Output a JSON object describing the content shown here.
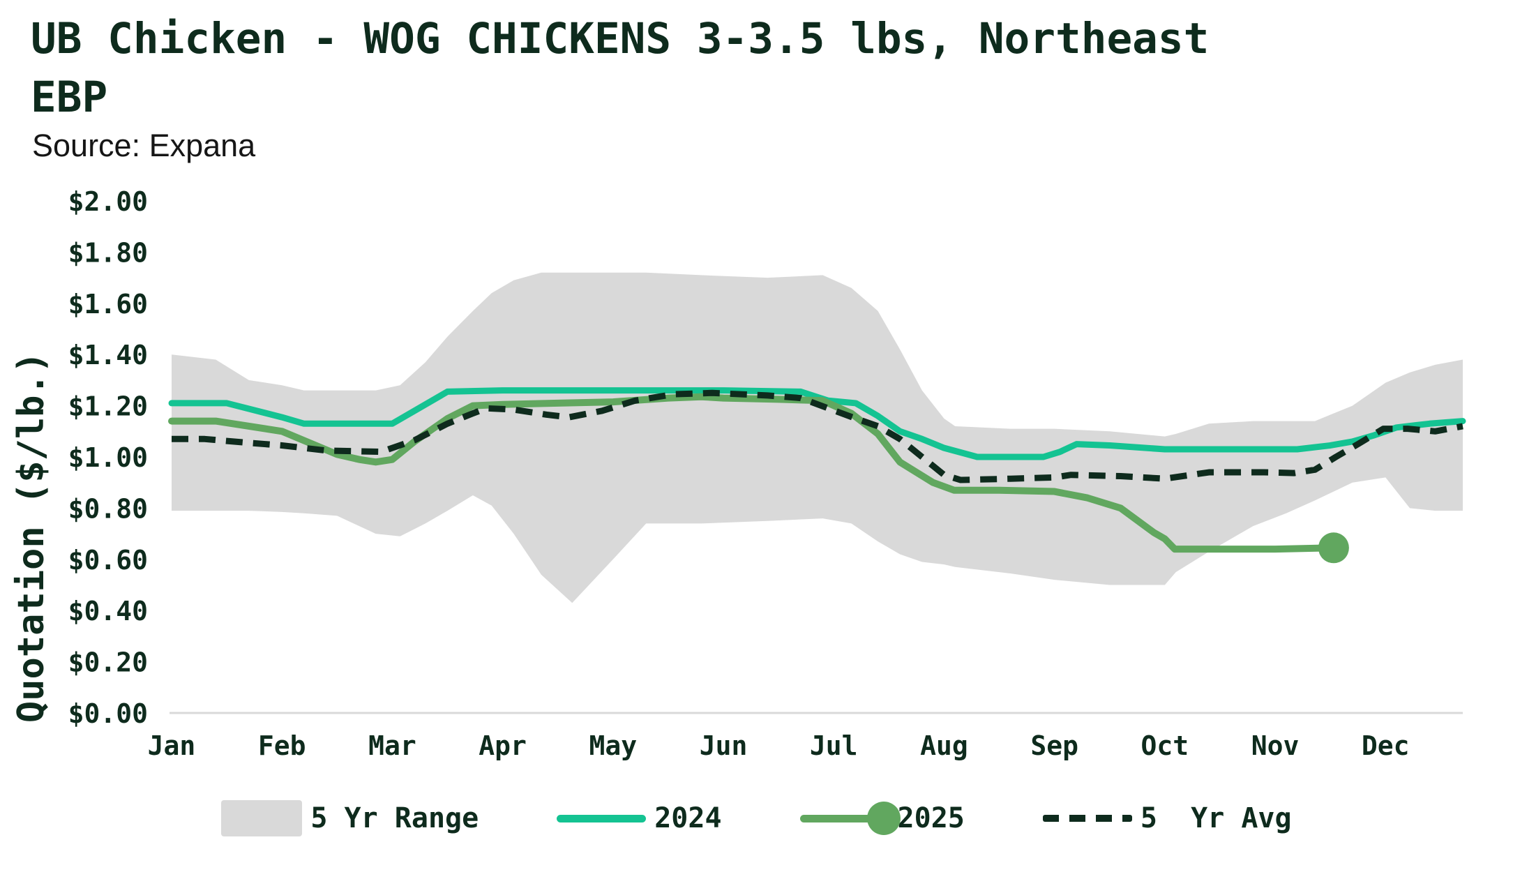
{
  "header": {
    "title": "UB Chicken - WOG CHICKENS 3-3.5 lbs, Northeast EBP",
    "source": "Source: Expana"
  },
  "colors": {
    "dark": "#0e2b1d",
    "teal_2024": "#14c392",
    "green_2025": "#61a75f",
    "band_gray": "#d9d9d9",
    "axis_line": "#d9d9d9",
    "source_text": "#161616",
    "background": "#ffffff"
  },
  "legend": {
    "items": [
      {
        "id": "range",
        "label": "5 Yr Range"
      },
      {
        "id": "y2024",
        "label": "2024"
      },
      {
        "id": "y2025",
        "label": "2025"
      },
      {
        "id": "avg",
        "label": "5  Yr Avg"
      }
    ]
  },
  "chart_data": {
    "type": "line",
    "title": "UB Chicken - WOG CHICKENS 3-3.5 lbs, Northeast EBP",
    "subtitle": "Source: Expana",
    "xlabel": "",
    "ylabel": "Quotation ($/lb.)",
    "x_categories": [
      "Jan",
      "Feb",
      "Mar",
      "Apr",
      "May",
      "Jun",
      "Jul",
      "Aug",
      "Sep",
      "Oct",
      "Nov",
      "Dec"
    ],
    "xlim": [
      0,
      11.7
    ],
    "ylim": [
      0,
      2.0
    ],
    "grid": false,
    "legend_position": "bottom",
    "y_ticks": [
      {
        "value": 2.0,
        "label": "$2.00"
      },
      {
        "value": 1.8,
        "label": "$1.80"
      },
      {
        "value": 1.6,
        "label": "$1.60"
      },
      {
        "value": 1.4,
        "label": "$1.40"
      },
      {
        "value": 1.2,
        "label": "$1.20"
      },
      {
        "value": 1.0,
        "label": "$1.00"
      },
      {
        "value": 0.8,
        "label": "$0.80"
      },
      {
        "value": 0.6,
        "label": "$0.60"
      },
      {
        "value": 0.4,
        "label": "$0.40"
      },
      {
        "value": 0.2,
        "label": "$0.20"
      },
      {
        "value": 0.0,
        "label": "$0.00"
      }
    ],
    "band": {
      "name": "5 Yr Range",
      "color": "#d9d9d9",
      "x": [
        0.0,
        0.4,
        0.7,
        1.0,
        1.2,
        1.5,
        1.85,
        2.07,
        2.3,
        2.5,
        2.73,
        2.9,
        3.1,
        3.35,
        3.63,
        4.0,
        4.3,
        4.8,
        5.4,
        5.9,
        6.16,
        6.4,
        6.6,
        6.8,
        7.0,
        7.1,
        7.6,
        8.0,
        8.5,
        9.0,
        9.1,
        9.4,
        9.8,
        10.1,
        10.36,
        10.7,
        11.0,
        11.22,
        11.45,
        11.7
      ],
      "top": [
        1.4,
        1.38,
        1.3,
        1.28,
        1.26,
        1.26,
        1.26,
        1.28,
        1.37,
        1.47,
        1.57,
        1.64,
        1.69,
        1.72,
        1.72,
        1.72,
        1.72,
        1.71,
        1.7,
        1.71,
        1.66,
        1.57,
        1.42,
        1.26,
        1.15,
        1.12,
        1.11,
        1.11,
        1.1,
        1.08,
        1.09,
        1.13,
        1.14,
        1.14,
        1.14,
        1.2,
        1.29,
        1.33,
        1.36,
        1.38
      ],
      "bottom": [
        0.79,
        0.79,
        0.79,
        0.785,
        0.78,
        0.77,
        0.7,
        0.69,
        0.74,
        0.79,
        0.85,
        0.81,
        0.7,
        0.54,
        0.43,
        0.6,
        0.74,
        0.74,
        0.75,
        0.76,
        0.74,
        0.67,
        0.62,
        0.59,
        0.58,
        0.57,
        0.545,
        0.52,
        0.5,
        0.5,
        0.55,
        0.63,
        0.73,
        0.78,
        0.83,
        0.9,
        0.92,
        0.8,
        0.79,
        0.79
      ]
    },
    "series": [
      {
        "name": "2024",
        "color": "#14c392",
        "style": "solid",
        "width": 9,
        "end_dot": false,
        "points": [
          [
            0,
            1.21
          ],
          [
            0.5,
            1.21
          ],
          [
            1.0,
            1.155
          ],
          [
            1.2,
            1.13
          ],
          [
            2.0,
            1.13
          ],
          [
            2.2,
            1.18
          ],
          [
            2.5,
            1.255
          ],
          [
            3.0,
            1.26
          ],
          [
            4.0,
            1.26
          ],
          [
            5.0,
            1.26
          ],
          [
            5.7,
            1.255
          ],
          [
            5.95,
            1.22
          ],
          [
            6.2,
            1.21
          ],
          [
            6.4,
            1.16
          ],
          [
            6.6,
            1.1
          ],
          [
            6.8,
            1.07
          ],
          [
            7.0,
            1.035
          ],
          [
            7.3,
            1.0
          ],
          [
            7.9,
            1.0
          ],
          [
            8.05,
            1.02
          ],
          [
            8.2,
            1.05
          ],
          [
            8.5,
            1.045
          ],
          [
            9.0,
            1.03
          ],
          [
            9.5,
            1.03
          ],
          [
            10.2,
            1.03
          ],
          [
            10.5,
            1.045
          ],
          [
            10.7,
            1.06
          ],
          [
            10.9,
            1.085
          ],
          [
            11.1,
            1.115
          ],
          [
            11.4,
            1.13
          ],
          [
            11.7,
            1.14
          ]
        ]
      },
      {
        "name": "2025",
        "color": "#61a75f",
        "style": "solid",
        "width": 10,
        "end_dot": true,
        "points": [
          [
            0,
            1.14
          ],
          [
            0.4,
            1.14
          ],
          [
            1.0,
            1.1
          ],
          [
            1.5,
            1.01
          ],
          [
            1.7,
            0.99
          ],
          [
            1.85,
            0.98
          ],
          [
            2.0,
            0.99
          ],
          [
            2.2,
            1.06
          ],
          [
            2.5,
            1.15
          ],
          [
            2.73,
            1.2
          ],
          [
            3.0,
            1.205
          ],
          [
            3.5,
            1.21
          ],
          [
            4.0,
            1.215
          ],
          [
            4.5,
            1.23
          ],
          [
            4.8,
            1.235
          ],
          [
            5.0,
            1.23
          ],
          [
            5.5,
            1.225
          ],
          [
            5.9,
            1.22
          ],
          [
            6.16,
            1.17
          ],
          [
            6.4,
            1.09
          ],
          [
            6.6,
            0.98
          ],
          [
            6.9,
            0.9
          ],
          [
            7.09,
            0.87
          ],
          [
            7.5,
            0.87
          ],
          [
            8.0,
            0.865
          ],
          [
            8.3,
            0.84
          ],
          [
            8.6,
            0.8
          ],
          [
            8.9,
            0.705
          ],
          [
            9.0,
            0.68
          ],
          [
            9.09,
            0.64
          ],
          [
            9.5,
            0.64
          ],
          [
            10.0,
            0.64
          ],
          [
            10.53,
            0.645
          ]
        ]
      },
      {
        "name": "5 Yr Avg",
        "color": "#0e2b1d",
        "style": "dashed",
        "width": 9,
        "end_dot": false,
        "points": [
          [
            0,
            1.07
          ],
          [
            0.3,
            1.07
          ],
          [
            0.7,
            1.055
          ],
          [
            1.0,
            1.045
          ],
          [
            1.4,
            1.025
          ],
          [
            1.9,
            1.02
          ],
          [
            2.2,
            1.065
          ],
          [
            2.5,
            1.13
          ],
          [
            2.73,
            1.17
          ],
          [
            2.85,
            1.19
          ],
          [
            3.1,
            1.185
          ],
          [
            3.4,
            1.165
          ],
          [
            3.6,
            1.155
          ],
          [
            3.9,
            1.18
          ],
          [
            4.2,
            1.22
          ],
          [
            4.55,
            1.245
          ],
          [
            4.9,
            1.25
          ],
          [
            5.4,
            1.24
          ],
          [
            5.7,
            1.23
          ],
          [
            5.95,
            1.19
          ],
          [
            6.2,
            1.15
          ],
          [
            6.4,
            1.12
          ],
          [
            6.6,
            1.07
          ],
          [
            6.8,
            1.0
          ],
          [
            7.0,
            0.93
          ],
          [
            7.15,
            0.91
          ],
          [
            7.6,
            0.915
          ],
          [
            8.0,
            0.92
          ],
          [
            8.15,
            0.93
          ],
          [
            8.6,
            0.925
          ],
          [
            9.0,
            0.915
          ],
          [
            9.4,
            0.94
          ],
          [
            9.9,
            0.94
          ],
          [
            10.17,
            0.937
          ],
          [
            10.36,
            0.95
          ],
          [
            10.55,
            1.0
          ],
          [
            10.75,
            1.05
          ],
          [
            10.98,
            1.11
          ],
          [
            11.2,
            1.11
          ],
          [
            11.45,
            1.1
          ],
          [
            11.7,
            1.12
          ]
        ]
      }
    ]
  }
}
